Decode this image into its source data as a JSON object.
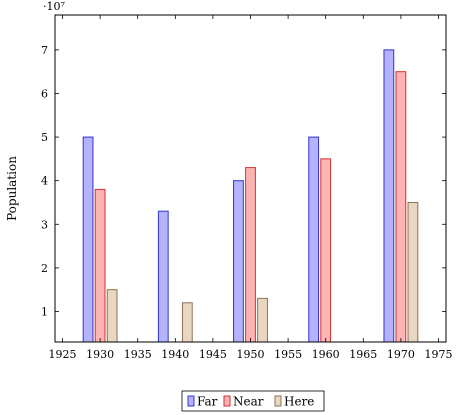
{
  "chart_data": {
    "type": "bar",
    "title": "",
    "xlabel": "",
    "ylabel": "Population",
    "y_multiplier_label": "·10⁷",
    "xlim": [
      1924,
      1976
    ],
    "ylim": [
      0.3,
      7.8
    ],
    "x_ticks": [
      1925,
      1930,
      1935,
      1940,
      1945,
      1950,
      1955,
      1960,
      1965,
      1970,
      1975
    ],
    "y_ticks": [
      1,
      2,
      3,
      4,
      5,
      6,
      7
    ],
    "grid": false,
    "legend_position": "bottom-center",
    "bar_width_years": 1.3,
    "series": [
      {
        "name": "Far",
        "fill": "#b3b3ff",
        "stroke": "#3333cc",
        "offset": -1.6,
        "points": [
          [
            1930,
            5.0
          ],
          [
            1940,
            3.3
          ],
          [
            1950,
            4.0
          ],
          [
            1960,
            5.0
          ],
          [
            1970,
            7.0
          ]
        ]
      },
      {
        "name": "Near",
        "fill": "#ffb3b3",
        "stroke": "#cc3333",
        "offset": 0,
        "points": [
          [
            1930,
            3.8
          ],
          [
            1950,
            4.3
          ],
          [
            1960,
            4.5
          ],
          [
            1970,
            6.5
          ]
        ]
      },
      {
        "name": "Here",
        "fill": "#ead7c2",
        "stroke": "#8c7259",
        "offset": 1.6,
        "points": [
          [
            1930,
            1.5
          ],
          [
            1940,
            1.2
          ],
          [
            1950,
            1.3
          ],
          [
            1970,
            3.5
          ]
        ]
      }
    ]
  }
}
